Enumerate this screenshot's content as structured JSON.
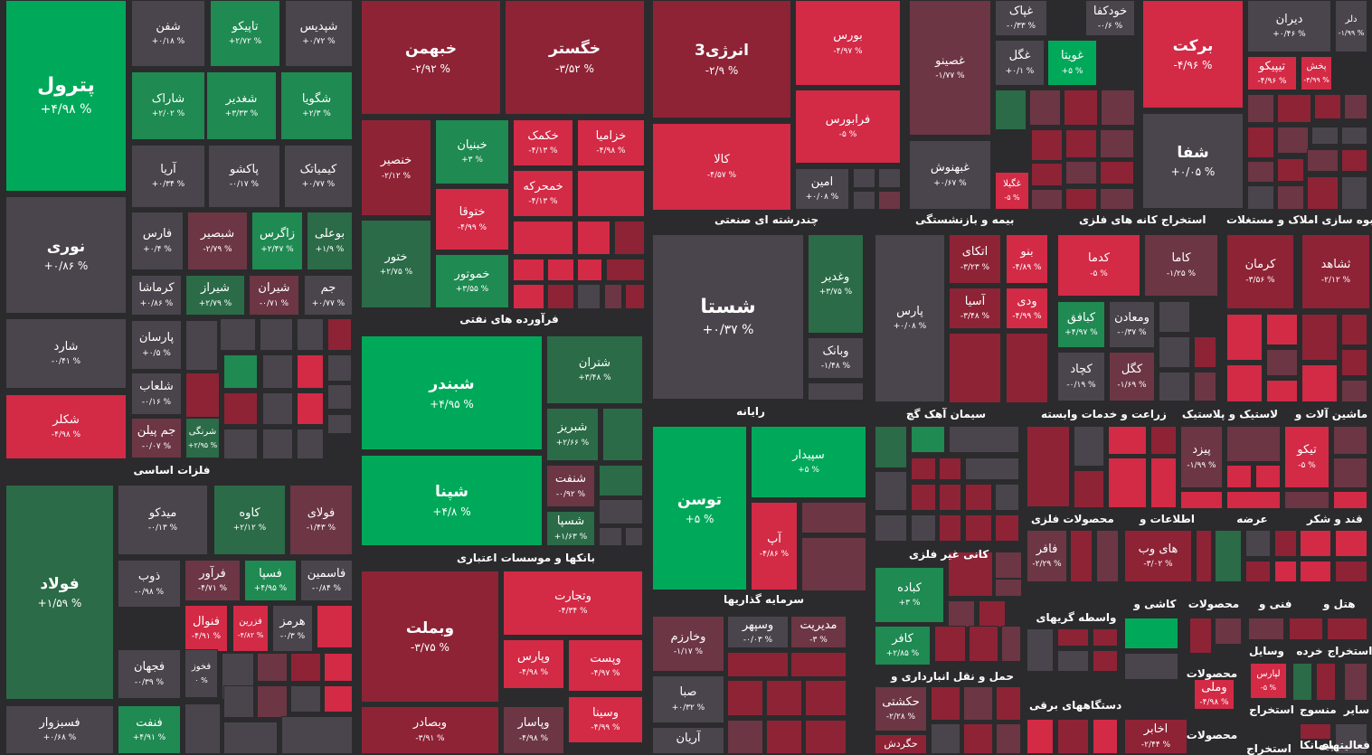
{
  "colors": {
    "background": "#2b2b2d",
    "strong_green": "#00a95a",
    "green": "#1f8a52",
    "dark_green": "#2b6b48",
    "neutral": "#4a454c",
    "red": "#d32a46",
    "dark_red": "#8e2336",
    "muted_red": "#6c3644"
  },
  "sectors": [
    "فلزات اساسی",
    "فرآورده های نفتی",
    "بانکها و موسسات اعتباری",
    "چندرشته ای صنعتی",
    "رایانه",
    "سرمایه گذاریها",
    "بیمه و بازنشستگی",
    "استخراج کانه های فلزی",
    "انبوه سازی املاک و مستغلات",
    "سیمان آهک گچ",
    "زراعت و خدمات وابسته",
    "لاستیک و پلاستیک",
    "ماشین آلات و",
    "کانی غیر فلزی",
    "محصولات فلزی",
    "اطلاعات و",
    "عرضه",
    "قند و شکر",
    "حمل و نقل انبارداری و",
    "واسطه گریهای",
    "کاشی و",
    "محصولات",
    "فنی و",
    "هتل و",
    "دستگاههای برقی",
    "استخراج",
    "خرده",
    "وسایل",
    "محصولات",
    "سایر",
    "منسوج",
    "استخراج",
    "محصولات",
    "فعالیتهای",
    "پیمانکا",
    "استخراج"
  ],
  "tiles": [
    {
      "name": "پترول",
      "pct": "+۴/۹۸ %"
    },
    {
      "name": "نوری",
      "pct": "+۰/۸۶ %"
    },
    {
      "name": "شارد",
      "pct": "-۰/۴۱ %"
    },
    {
      "name": "شکلر",
      "pct": "-۴/۹۸ %"
    },
    {
      "name": "شفن",
      "pct": "+۰/۱۸ %"
    },
    {
      "name": "تاپیکو",
      "pct": "+۲/۷۲ %"
    },
    {
      "name": "شپدیس",
      "pct": "+۰/۷۲ %"
    },
    {
      "name": "شاراک",
      "pct": "+۲/۰۲ %"
    },
    {
      "name": "شغدیر",
      "pct": "+۳/۳۳ %"
    },
    {
      "name": "شگویا",
      "pct": "+۲/۳ %"
    },
    {
      "name": "آریا",
      "pct": "+۰/۳۴ %"
    },
    {
      "name": "پاکشو",
      "pct": "-۰/۱۷ %"
    },
    {
      "name": "کیمیاتک",
      "pct": "+۰/۷۷ %"
    },
    {
      "name": "فارس",
      "pct": "+۰/۴ %"
    },
    {
      "name": "شبصیر",
      "pct": "-۲/۷۹ %"
    },
    {
      "name": "زاگرس",
      "pct": "+۲/۴۷ %"
    },
    {
      "name": "بوعلی",
      "pct": "+۱/۹ %"
    },
    {
      "name": "کرماشا",
      "pct": "+۰/۸۶ %"
    },
    {
      "name": "شیراز",
      "pct": "+۲/۷۹ %"
    },
    {
      "name": "شیران",
      "pct": "-۰/۷۱ %"
    },
    {
      "name": "جم",
      "pct": "+۰/۷۷ %"
    },
    {
      "name": "پارسان",
      "pct": "+۰/۵ %"
    },
    {
      "name": "شلعاب",
      "pct": "-۰/۱۶ %"
    },
    {
      "name": "جم پیلن",
      "pct": "-۰/۰۷ %"
    },
    {
      "name": "شرنگی",
      "pct": "+۲/۹۵ %"
    },
    {
      "name": "فولاد",
      "pct": "+۱/۵۹ %"
    },
    {
      "name": "فسبزوار",
      "pct": "+۰/۶۸ %"
    },
    {
      "name": "میدکو",
      "pct": "-۰/۱۳ %"
    },
    {
      "name": "کاوه",
      "pct": "+۲/۱۲ %"
    },
    {
      "name": "فولای",
      "pct": "-۱/۴۳ %"
    },
    {
      "name": "ذوب",
      "pct": "-۰/۹۸ %"
    },
    {
      "name": "فرآور",
      "pct": "-۴/۷۱ %"
    },
    {
      "name": "فسپا",
      "pct": "+۴/۹۵ %"
    },
    {
      "name": "فاسمین",
      "pct": "-۰/۸۴ %"
    },
    {
      "name": "فنوال",
      "pct": "-۴/۹۱ %"
    },
    {
      "name": "فزرین",
      "pct": "-۴/۸۲ %"
    },
    {
      "name": "هرمز",
      "pct": "-۰/۳ %"
    },
    {
      "name": "فجهان",
      "pct": "-۰/۳۹ %"
    },
    {
      "name": "فخوز",
      "pct": "۰ %"
    },
    {
      "name": "فنفت",
      "pct": "+۴/۹۱ %"
    },
    {
      "name": "خبهمن",
      "pct": "-۲/۹۲ %"
    },
    {
      "name": "خگستر",
      "pct": "-۳/۵۲ %"
    },
    {
      "name": "خنصیر",
      "pct": "-۲/۱۲ %"
    },
    {
      "name": "خبنیان",
      "pct": "+۳ %"
    },
    {
      "name": "خکمک",
      "pct": "-۴/۱۳ %"
    },
    {
      "name": "خزامیا",
      "pct": "-۴/۹۸ %"
    },
    {
      "name": "خمحرکه",
      "pct": "-۴/۱۳ %"
    },
    {
      "name": "ختوقا",
      "pct": "-۴/۹۹ %"
    },
    {
      "name": "ختور",
      "pct": "+۲/۷۵ %"
    },
    {
      "name": "خموتور",
      "pct": "+۳/۵۵ %"
    },
    {
      "name": "شبندر",
      "pct": "+۴/۹۵ %"
    },
    {
      "name": "شتران",
      "pct": "+۳/۴۸ %"
    },
    {
      "name": "شبریز",
      "pct": "+۲/۶۶ %"
    },
    {
      "name": "شپنا",
      "pct": "+۴/۸ %"
    },
    {
      "name": "شنفت",
      "pct": "-۰/۹۲ %"
    },
    {
      "name": "شسپا",
      "pct": "+۱/۶۳ %"
    },
    {
      "name": "وبملت",
      "pct": "-۳/۷۵ %"
    },
    {
      "name": "وتجارت",
      "pct": "-۴/۳۴ %"
    },
    {
      "name": "وپارس",
      "pct": "-۴/۹۸ %"
    },
    {
      "name": "وپست",
      "pct": "-۴/۹۷ %"
    },
    {
      "name": "وسینا",
      "pct": "-۴/۹۹ %"
    },
    {
      "name": "وبصادر",
      "pct": "-۳/۹۱ %"
    },
    {
      "name": "وپاسار",
      "pct": "-۴/۹۸ %"
    },
    {
      "name": "انرژی3",
      "pct": "-۲/۹ %"
    },
    {
      "name": "بورس",
      "pct": "-۴/۹۷ %"
    },
    {
      "name": "فرابورس",
      "pct": "-۵ %"
    },
    {
      "name": "کالا",
      "pct": "-۴/۵۷ %"
    },
    {
      "name": "امین",
      "pct": "+۰/۰۸ %"
    },
    {
      "name": "شستا",
      "pct": "+۰/۳۷ %"
    },
    {
      "name": "وغدیر",
      "pct": "+۳/۷۵ %"
    },
    {
      "name": "وبانک",
      "pct": "-۱/۴۸ %"
    },
    {
      "name": "توسن",
      "pct": "+۵ %"
    },
    {
      "name": "سپیدار",
      "pct": "+۵ %"
    },
    {
      "name": "آپ",
      "pct": "-۴/۸۶ %"
    },
    {
      "name": "وخارزم",
      "pct": "-۱/۱۷ %"
    },
    {
      "name": "وسپهر",
      "pct": "-۰/۰۳ %"
    },
    {
      "name": "مدیریت",
      "pct": "-۳ %"
    },
    {
      "name": "صبا",
      "pct": "+۰/۳۲ %"
    },
    {
      "name": "آریان",
      "pct": ""
    },
    {
      "name": "غصینو",
      "pct": "-۱/۷۷ %"
    },
    {
      "name": "غپاک",
      "pct": "-۰/۳۳ %"
    },
    {
      "name": "خودکفا",
      "pct": "-۰/۶ %"
    },
    {
      "name": "غگل",
      "pct": "+۰/۱ %"
    },
    {
      "name": "غویتا",
      "pct": "+۵ %"
    },
    {
      "name": "غبهنوش",
      "pct": "+۰/۶۷ %"
    },
    {
      "name": "غگیلا",
      "pct": "-۵ %"
    },
    {
      "name": "برکت",
      "pct": "-۴/۹۶ %"
    },
    {
      "name": "شفا",
      "pct": "+۰/۰۵ %"
    },
    {
      "name": "دیران",
      "pct": "+۰/۴۶ %"
    },
    {
      "name": "دلر",
      "pct": "-۱/۹۹ %"
    },
    {
      "name": "تیپیکو",
      "pct": "-۴/۹۶ %"
    },
    {
      "name": "پخش",
      "pct": "-۴/۹۹ %"
    },
    {
      "name": "پارس",
      "pct": "+۰/۰۸ %"
    },
    {
      "name": "اتکای",
      "pct": "-۳/۲۳ %"
    },
    {
      "name": "بنو",
      "pct": "-۴/۸۹ %"
    },
    {
      "name": "آسیا",
      "pct": "-۳/۴۸ %"
    },
    {
      "name": "ودی",
      "pct": "-۴/۹۹ %"
    },
    {
      "name": "کدما",
      "pct": "-۵ %"
    },
    {
      "name": "کاما",
      "pct": "-۱/۲۵ %"
    },
    {
      "name": "کرمان",
      "pct": "-۳/۵۶ %"
    },
    {
      "name": "ثشاهد",
      "pct": "-۲/۱۲ %"
    },
    {
      "name": "کبافق",
      "pct": "+۴/۹۷ %"
    },
    {
      "name": "ومعادن",
      "pct": "-۰/۳۷ %"
    },
    {
      "name": "کچاد",
      "pct": "-۰/۱۹ %"
    },
    {
      "name": "کگل",
      "pct": "-۱/۶۹ %"
    },
    {
      "name": "پیزد",
      "pct": "-۱/۹۹ %"
    },
    {
      "name": "تیکو",
      "pct": "-۵ %"
    },
    {
      "name": "فافر",
      "pct": "-۲/۲۹ %"
    },
    {
      "name": "های وب",
      "pct": "-۳/۰۲ %"
    },
    {
      "name": "کباده",
      "pct": "+۳ %"
    },
    {
      "name": "کافر",
      "pct": "+۲/۸۵ %"
    },
    {
      "name": "حکشتی",
      "pct": "-۲/۲۸ %"
    },
    {
      "name": "حگردش",
      "pct": ""
    },
    {
      "name": "لپارس",
      "pct": "-۵ %"
    },
    {
      "name": "وملی",
      "pct": "-۴/۹۸ %"
    },
    {
      "name": "اخابر",
      "pct": "-۲/۴۴ %"
    }
  ]
}
